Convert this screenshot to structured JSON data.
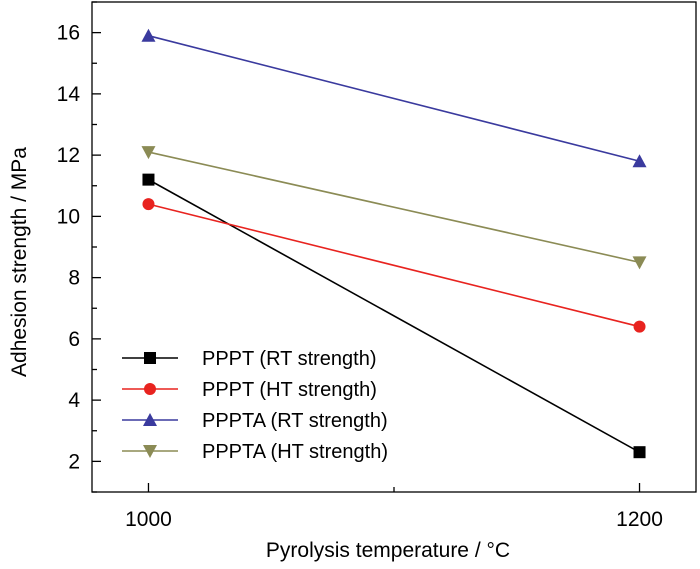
{
  "chart_data": {
    "type": "line",
    "title": "",
    "xlabel": "Pyrolysis temperature / ",
    "xlabel_unit": "°C",
    "ylabel": "Adhesion strength / MPa",
    "x": [
      1000,
      1200
    ],
    "xlim": [
      977,
      1223
    ],
    "ylim": [
      1,
      17
    ],
    "x_ticks": [
      1000,
      1200
    ],
    "x_minor_ticks": [
      1100
    ],
    "y_ticks": [
      2,
      4,
      6,
      8,
      10,
      12,
      14,
      16
    ],
    "grid": false,
    "legend_position": "bottom-left",
    "series": [
      {
        "name": "PPPT (RT strength)",
        "values": [
          11.2,
          2.3
        ],
        "color": "#000000",
        "marker": "square"
      },
      {
        "name": "PPPT (HT strength)",
        "values": [
          10.4,
          6.4
        ],
        "color": "#e8231f",
        "marker": "circle"
      },
      {
        "name": "PPPTA (RT strength)",
        "values": [
          15.9,
          11.8
        ],
        "color": "#3a3a9e",
        "marker": "triangle-up"
      },
      {
        "name": "PPPTA (HT strength)",
        "values": [
          12.1,
          8.5
        ],
        "color": "#8b8b55",
        "marker": "triangle-down"
      }
    ]
  }
}
